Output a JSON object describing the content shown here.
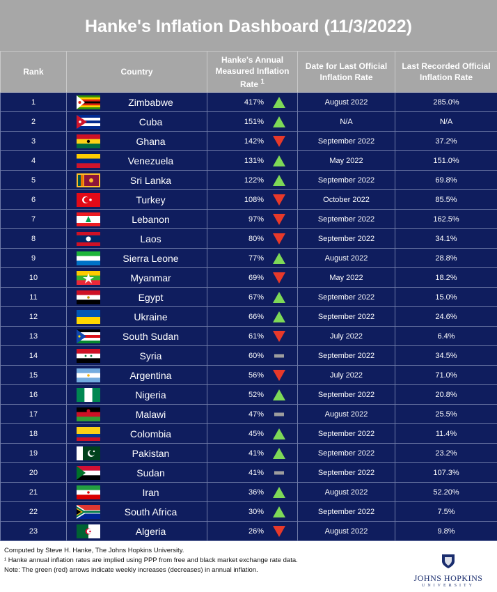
{
  "title": "Hanke's Inflation Dashboard (11/3/2022)",
  "headers": {
    "rank": "Rank",
    "country": "Country",
    "hanke_rate_a": "Hanke's Annual Measured Inflation Rate",
    "hanke_rate_sup": "1",
    "date": "Date for Last Official Inflation Rate",
    "official": "Last Recorded Official Inflation Rate"
  },
  "colors": {
    "header_bg": "#a7a7a7",
    "row_bg": "#0f1d5e",
    "up": "#7ed957",
    "down": "#e8392a",
    "flat": "#9e9e9e"
  },
  "chart_data": {
    "type": "table",
    "title": "Hanke's Inflation Dashboard (11/3/2022)",
    "rows": [
      {
        "rank": "1",
        "country": "Zimbabwe",
        "hanke": "417%",
        "trend": "up",
        "date": "August 2022",
        "official": "285.0%",
        "flag": "zimbabwe"
      },
      {
        "rank": "2",
        "country": "Cuba",
        "hanke": "151%",
        "trend": "up",
        "date": "N/A",
        "official": "N/A",
        "flag": "cuba"
      },
      {
        "rank": "3",
        "country": "Ghana",
        "hanke": "142%",
        "trend": "down",
        "date": "September 2022",
        "official": "37.2%",
        "flag": "ghana"
      },
      {
        "rank": "4",
        "country": "Venezuela",
        "hanke": "131%",
        "trend": "up",
        "date": "May 2022",
        "official": "151.0%",
        "flag": "venezuela"
      },
      {
        "rank": "5",
        "country": "Sri Lanka",
        "hanke": "122%",
        "trend": "up",
        "date": "September 2022",
        "official": "69.8%",
        "flag": "srilanka"
      },
      {
        "rank": "6",
        "country": "Turkey",
        "hanke": "108%",
        "trend": "down",
        "date": "October 2022",
        "official": "85.5%",
        "flag": "turkey"
      },
      {
        "rank": "7",
        "country": "Lebanon",
        "hanke": "97%",
        "trend": "down",
        "date": "September 2022",
        "official": "162.5%",
        "flag": "lebanon"
      },
      {
        "rank": "8",
        "country": "Laos",
        "hanke": "80%",
        "trend": "down",
        "date": "September 2022",
        "official": "34.1%",
        "flag": "laos"
      },
      {
        "rank": "9",
        "country": "Sierra Leone",
        "hanke": "77%",
        "trend": "up",
        "date": "August 2022",
        "official": "28.8%",
        "flag": "sierraleone"
      },
      {
        "rank": "10",
        "country": "Myanmar",
        "hanke": "69%",
        "trend": "down",
        "date": "May 2022",
        "official": "18.2%",
        "flag": "myanmar"
      },
      {
        "rank": "11",
        "country": "Egypt",
        "hanke": "67%",
        "trend": "up",
        "date": "September 2022",
        "official": "15.0%",
        "flag": "egypt"
      },
      {
        "rank": "12",
        "country": "Ukraine",
        "hanke": "66%",
        "trend": "up",
        "date": "September 2022",
        "official": "24.6%",
        "flag": "ukraine"
      },
      {
        "rank": "13",
        "country": "South Sudan",
        "hanke": "61%",
        "trend": "down",
        "date": "July 2022",
        "official": "6.4%",
        "flag": "southsudan"
      },
      {
        "rank": "14",
        "country": "Syria",
        "hanke": "60%",
        "trend": "flat",
        "date": "September 2022",
        "official": "34.5%",
        "flag": "syria"
      },
      {
        "rank": "15",
        "country": "Argentina",
        "hanke": "56%",
        "trend": "down",
        "date": "July 2022",
        "official": "71.0%",
        "flag": "argentina"
      },
      {
        "rank": "16",
        "country": "Nigeria",
        "hanke": "52%",
        "trend": "up",
        "date": "September 2022",
        "official": "20.8%",
        "flag": "nigeria"
      },
      {
        "rank": "17",
        "country": "Malawi",
        "hanke": "47%",
        "trend": "flat",
        "date": "August 2022",
        "official": "25.5%",
        "flag": "malawi"
      },
      {
        "rank": "18",
        "country": "Colombia",
        "hanke": "45%",
        "trend": "up",
        "date": "September 2022",
        "official": "11.4%",
        "flag": "colombia"
      },
      {
        "rank": "19",
        "country": "Pakistan",
        "hanke": "41%",
        "trend": "up",
        "date": "September 2022",
        "official": "23.2%",
        "flag": "pakistan"
      },
      {
        "rank": "20",
        "country": "Sudan",
        "hanke": "41%",
        "trend": "flat",
        "date": "September 2022",
        "official": "107.3%",
        "flag": "sudan"
      },
      {
        "rank": "21",
        "country": "Iran",
        "hanke": "36%",
        "trend": "up",
        "date": "August 2022",
        "official": "52.20%",
        "flag": "iran"
      },
      {
        "rank": "22",
        "country": "South Africa",
        "hanke": "30%",
        "trend": "up",
        "date": "September 2022",
        "official": "7.5%",
        "flag": "southafrica"
      },
      {
        "rank": "23",
        "country": "Algeria",
        "hanke": "26%",
        "trend": "down",
        "date": "August 2022",
        "official": "9.8%",
        "flag": "algeria"
      }
    ]
  },
  "footer": {
    "line1": "Computed by Steve H. Hanke, The Johns Hopkins University.",
    "line2": "¹ Hanke annual inflation rates are implied using PPP from free and black market exchange rate data.",
    "line3": "Note: The green (red) arrows indicate weekly increases (decreases) in annual inflation.",
    "logo_name": "JOHNS HOPKINS",
    "logo_sub": "UNIVERSITY"
  }
}
